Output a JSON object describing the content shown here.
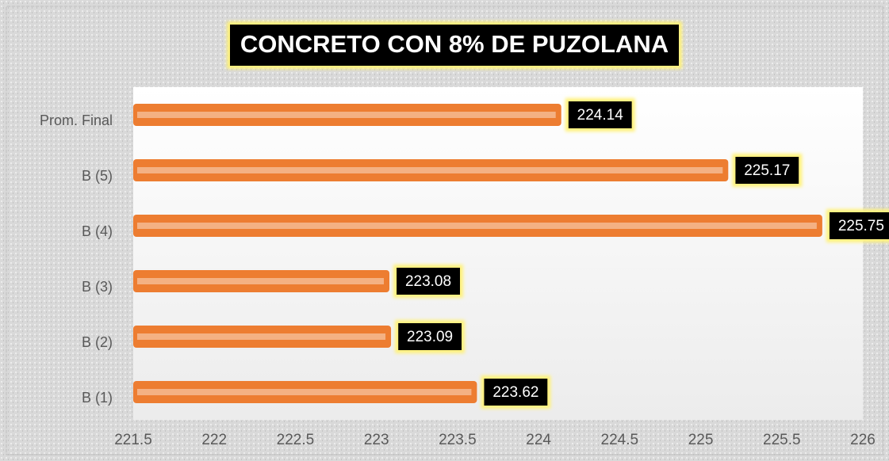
{
  "chart_data": {
    "type": "hbar",
    "title": "CONCRETO CON 8% DE PUZOLANA",
    "categories": [
      "B (1)",
      "B (2)",
      "B (3)",
      "B (4)",
      "B (5)",
      "Prom. Final"
    ],
    "values": [
      223.62,
      223.09,
      223.08,
      225.75,
      225.17,
      224.14
    ],
    "color": "#ED7D31",
    "xlim": [
      221.5,
      226
    ],
    "xticks": [
      221.5,
      222,
      222.5,
      223,
      223.5,
      224,
      224.5,
      225,
      225.5,
      226
    ],
    "grid": false
  }
}
